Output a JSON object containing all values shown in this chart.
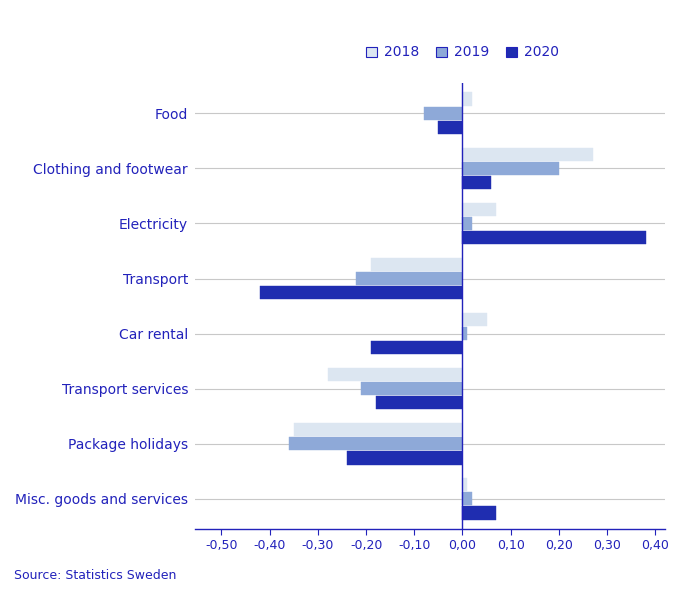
{
  "categories": [
    "Food",
    "Clothing and footwear",
    "Electricity",
    "Transport",
    "Car rental",
    "Transport services",
    "Package holidays",
    "Misc. goods and services"
  ],
  "series": {
    "2018": [
      0.02,
      0.27,
      0.07,
      -0.19,
      0.05,
      -0.28,
      -0.35,
      0.01
    ],
    "2019": [
      -0.08,
      0.2,
      0.02,
      -0.22,
      0.01,
      -0.21,
      -0.36,
      0.02
    ],
    "2020": [
      -0.05,
      0.06,
      0.38,
      -0.42,
      -0.19,
      -0.18,
      -0.24,
      0.07
    ]
  },
  "colors": {
    "2018": "#dce6f1",
    "2019": "#8ea9d8",
    "2020": "#1f2db0"
  },
  "xlim": [
    -0.555,
    0.42
  ],
  "xticks": [
    -0.5,
    -0.4,
    -0.3,
    -0.2,
    -0.1,
    0.0,
    0.1,
    0.2,
    0.3,
    0.4
  ],
  "xtick_labels": [
    "-0,50",
    "-0,40",
    "-0,30",
    "-0,20",
    "-0,10",
    "0,00",
    "0,10",
    "0,20",
    "0,30",
    "0,40"
  ],
  "label_color": "#2222bb",
  "source_text": "Source: Statistics Sweden",
  "legend_labels": [
    "2018",
    "2019",
    "2020"
  ],
  "bar_height": 0.26,
  "background_color": "#ffffff",
  "grid_color": "#c8c8c8"
}
